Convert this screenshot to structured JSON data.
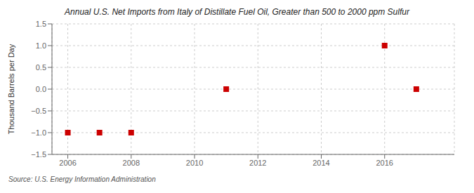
{
  "chart_data": {
    "type": "scatter",
    "title": "Annual U.S. Net Imports from Italy of Distillate Fuel Oil, Greater than 500 to 2000 ppm Sulfur",
    "y_label": "Thousand Barrels per Day",
    "annotations": [
      "Source: U.S. Energy Information Administration"
    ],
    "x": [
      2006,
      2007,
      2008,
      2011,
      2016,
      2017
    ],
    "values": [
      -1,
      -1,
      -1,
      0,
      1,
      0
    ],
    "color": "#cc0000",
    "marker": "square",
    "line_style": "none",
    "xlim": [
      2005.5,
      2018.2
    ],
    "ylim": [
      -1.5,
      1.5
    ],
    "xticks": [
      2006,
      2008,
      2010,
      2012,
      2014,
      2016
    ],
    "yticks": [
      {
        "value": -1.5,
        "label": "−1.5"
      },
      {
        "value": -1.0,
        "label": "−1.0"
      },
      {
        "value": -0.5,
        "label": "−0.5"
      },
      {
        "value": 0.0,
        "label": "0.0"
      },
      0.5,
      {
        "value": 1.0,
        "label": "1.0"
      },
      1.5
    ],
    "grid": true
  }
}
